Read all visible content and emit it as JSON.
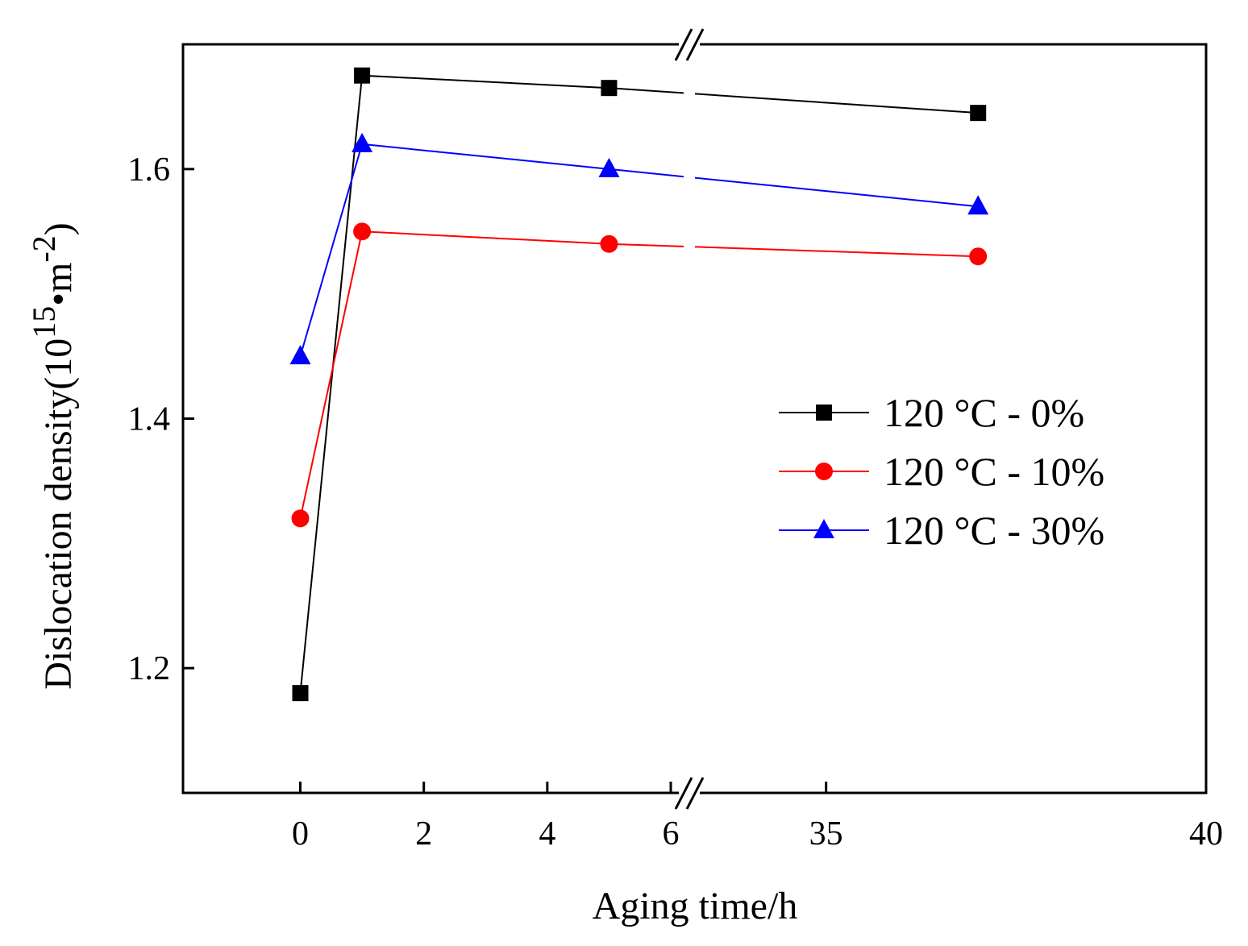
{
  "chart_data": {
    "type": "line",
    "xlabel": "Aging time/h",
    "ylabel": {
      "prefix": "Dislocation density(10",
      "sup1": "15",
      "mid": "•m",
      "sup2": "-2",
      "suffix": ")"
    },
    "ylim": [
      1.1,
      1.7
    ],
    "y_ticks": [
      1.2,
      1.4,
      1.6
    ],
    "y_tick_labels": [
      "1.2",
      "1.4",
      "1.6"
    ],
    "x_break": {
      "left_segment": [
        -1.9,
        6.3
      ],
      "right_segment": [
        33.2,
        40
      ]
    },
    "x_ticks": [
      0,
      2,
      4,
      6,
      35,
      40
    ],
    "x_tick_labels": [
      "0",
      "2",
      "4",
      "6",
      "35",
      "40"
    ],
    "series": [
      {
        "name": "120 °C - 0%",
        "color": "#000000",
        "marker": "square",
        "x": [
          0,
          1,
          5,
          37
        ],
        "y": [
          1.18,
          1.675,
          1.665,
          1.645
        ]
      },
      {
        "name": "120 °C - 10%",
        "color": "#ff0000",
        "marker": "circle",
        "x": [
          0,
          1,
          5,
          37
        ],
        "y": [
          1.32,
          1.55,
          1.54,
          1.53
        ]
      },
      {
        "name": "120 °C - 30%",
        "color": "#0000ff",
        "marker": "triangle",
        "x": [
          0,
          1,
          5,
          37
        ],
        "y": [
          1.45,
          1.62,
          1.6,
          1.57
        ]
      }
    ]
  }
}
